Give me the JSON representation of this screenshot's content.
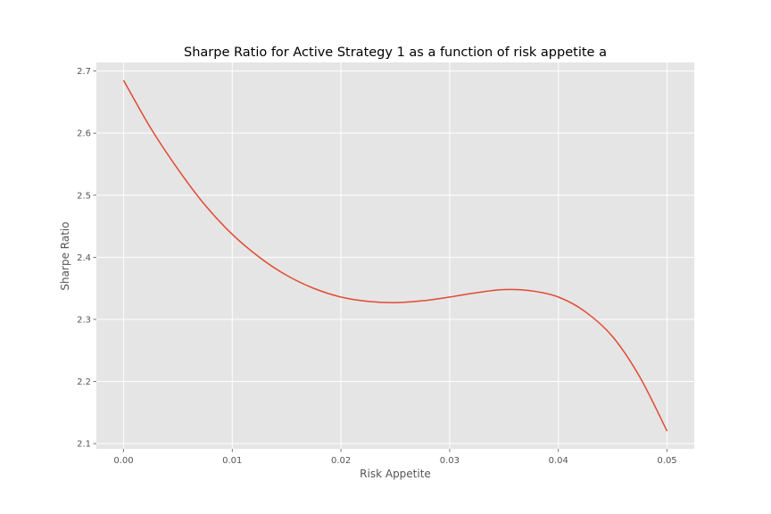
{
  "chart_data": {
    "type": "line",
    "title": "Sharpe Ratio for Active Strategy 1 as a function of risk appetite a",
    "xlabel": "Risk Appetite",
    "ylabel": "Sharpe Ratio",
    "xlim": [
      -0.0025,
      0.0525
    ],
    "ylim": [
      2.0915,
      2.7138
    ],
    "xticks": [
      0.0,
      0.01,
      0.02,
      0.03,
      0.04,
      0.05
    ],
    "xtick_labels": [
      "0.00",
      "0.01",
      "0.02",
      "0.03",
      "0.04",
      "0.05"
    ],
    "yticks": [
      2.1,
      2.2,
      2.3,
      2.4,
      2.5,
      2.6,
      2.7
    ],
    "ytick_labels": [
      "2.1",
      "2.2",
      "2.3",
      "2.4",
      "2.5",
      "2.6",
      "2.7"
    ],
    "grid": true,
    "series": [
      {
        "color": "#E24A33",
        "x": [
          0.0,
          0.0025,
          0.005,
          0.0075,
          0.01,
          0.0125,
          0.015,
          0.0175,
          0.02,
          0.0225,
          0.025,
          0.0275,
          0.03,
          0.0325,
          0.035,
          0.0375,
          0.04,
          0.0425,
          0.045,
          0.0475,
          0.05
        ],
        "y": [
          2.685,
          2.608,
          2.542,
          2.484,
          2.437,
          2.4,
          2.371,
          2.35,
          2.336,
          2.329,
          2.327,
          2.33,
          2.336,
          2.343,
          2.348,
          2.346,
          2.336,
          2.312,
          2.272,
          2.207,
          2.12
        ]
      }
    ]
  }
}
